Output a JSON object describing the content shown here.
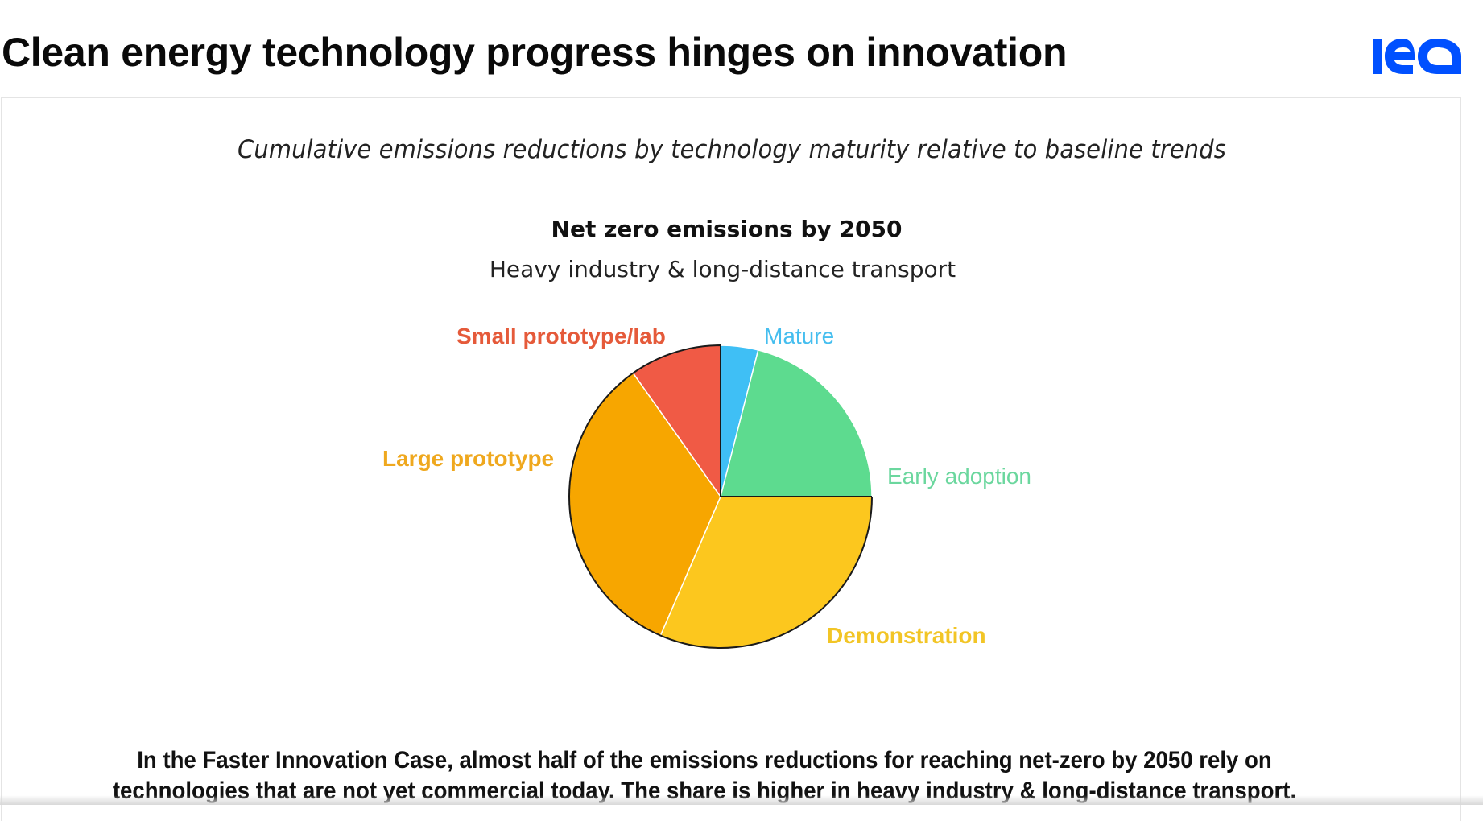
{
  "slide": {
    "title": "Clean energy technology progress hinges on innovation",
    "logo_text": "iea",
    "logo_color": "#0050FF"
  },
  "card": {
    "subtitle": "Cumulative emissions reductions by technology maturity relative to baseline trends",
    "chart_title": "Net zero emissions by 2050",
    "chart_subtitle": "Heavy industry & long-distance transport"
  },
  "labels": {
    "mature": "Mature",
    "early_adoption": "Early adoption",
    "demonstration": "Demonstration",
    "large_prototype": "Large prototype",
    "small_prototype": "Small prototype/lab"
  },
  "caption": {
    "line1": "In the Faster Innovation Case, almost half of the emissions reductions for reaching net-zero by 2050 rely on",
    "line2": "technologies that are not yet commercial today. The share is higher in heavy industry & long-distance transport."
  },
  "chart_data": {
    "type": "pie",
    "title": "Net zero emissions by 2050",
    "subtitle": "Heavy industry & long-distance transport",
    "header": "Cumulative emissions reductions by technology maturity relative to baseline trends",
    "categories": [
      "Mature",
      "Early adoption",
      "Demonstration",
      "Large prototype",
      "Small prototype/lab"
    ],
    "values": [
      4,
      21,
      31.5,
      33.7,
      9.8
    ],
    "unit": "% of cumulative emissions reductions (estimated from slice angles)",
    "colors": [
      "#3FBFF5",
      "#5DDB8F",
      "#FCC71E",
      "#F7A600",
      "#F05A45"
    ],
    "start_angle_deg": 0,
    "direction": "clockwise",
    "legend": "direct slice labels"
  }
}
